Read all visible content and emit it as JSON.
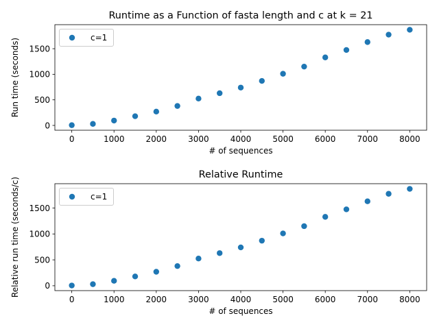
{
  "chart_data": [
    {
      "type": "scatter",
      "title": "Runtime as a Function of fasta length and c at k = 21",
      "xlabel": "# of sequences",
      "ylabel": "Run time (seconds)",
      "xlim": [
        -400,
        8400
      ],
      "ylim": [
        -94,
        1970
      ],
      "xticks": [
        0,
        1000,
        2000,
        3000,
        4000,
        5000,
        6000,
        7000,
        8000
      ],
      "yticks": [
        0,
        500,
        1000,
        1500
      ],
      "grid": false,
      "legend_position": "upper-left",
      "series": [
        {
          "name": "c=1",
          "color": "#1f77b4",
          "x": [
            0,
            500,
            1000,
            1500,
            2000,
            2500,
            3000,
            3500,
            4000,
            4500,
            5000,
            5500,
            6000,
            6500,
            7000,
            7500,
            8000
          ],
          "y": [
            5,
            30,
            95,
            180,
            270,
            380,
            525,
            630,
            740,
            870,
            1010,
            1150,
            1330,
            1475,
            1630,
            1775,
            1870
          ]
        }
      ]
    },
    {
      "type": "scatter",
      "title": "Relative Runtime",
      "xlabel": "# of sequences",
      "ylabel": "Relative run time (seconds/c)",
      "xlim": [
        -400,
        8400
      ],
      "ylim": [
        -94,
        1970
      ],
      "xticks": [
        0,
        1000,
        2000,
        3000,
        4000,
        5000,
        6000,
        7000,
        8000
      ],
      "yticks": [
        0,
        500,
        1000,
        1500
      ],
      "grid": false,
      "legend_position": "upper-left",
      "series": [
        {
          "name": "c=1",
          "color": "#1f77b4",
          "x": [
            0,
            500,
            1000,
            1500,
            2000,
            2500,
            3000,
            3500,
            4000,
            4500,
            5000,
            5500,
            6000,
            6500,
            7000,
            7500,
            8000
          ],
          "y": [
            5,
            30,
            95,
            180,
            270,
            380,
            525,
            630,
            740,
            870,
            1010,
            1150,
            1330,
            1475,
            1630,
            1775,
            1870
          ]
        }
      ]
    }
  ]
}
